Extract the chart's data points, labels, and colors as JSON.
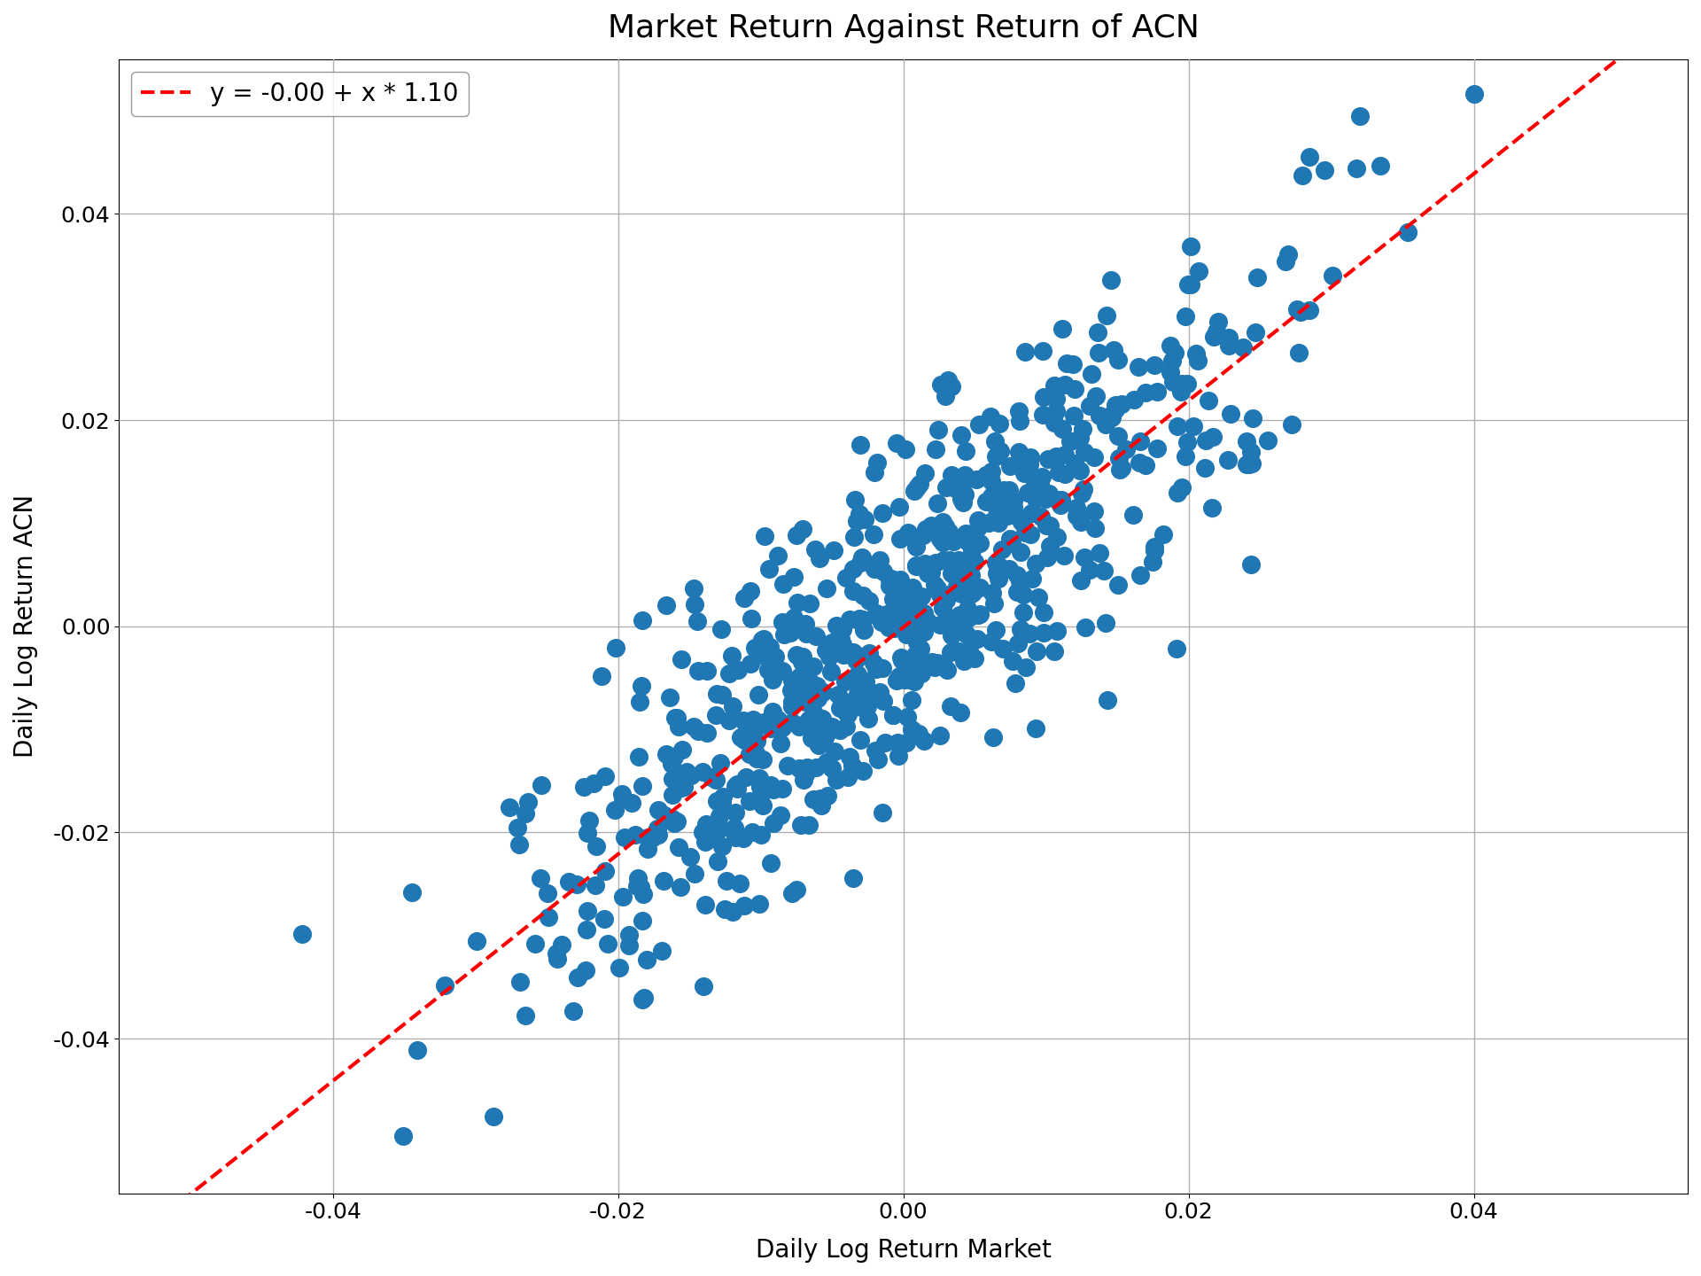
{
  "title": "Market Return Against Return of ACN",
  "xlabel": "Daily Log Return Market",
  "ylabel": "Daily Log Return ACN",
  "legend_label": "y = -0.00 + x * 1.10",
  "intercept": -0.0001,
  "slope": 1.1,
  "scatter_color": "#1f77b4",
  "line_color": "#ff0000",
  "line_style": "--",
  "xlim": [
    -0.055,
    0.055
  ],
  "ylim": [
    -0.055,
    0.055
  ],
  "xticks": [
    -0.04,
    -0.02,
    0.0,
    0.02,
    0.04
  ],
  "yticks": [
    -0.04,
    -0.02,
    0.0,
    0.02,
    0.04
  ],
  "n_points": 750,
  "random_seed": 42,
  "market_std": 0.013,
  "noise_std": 0.008,
  "marker_size": 200,
  "title_fontsize": 26,
  "label_fontsize": 20,
  "tick_fontsize": 18,
  "legend_fontsize": 20,
  "grid_color": "#b0b0b0",
  "grid_linewidth": 1.0,
  "line_linewidth": 3.0,
  "fig_width": 19.2,
  "fig_height": 14.4,
  "dpi": 100
}
